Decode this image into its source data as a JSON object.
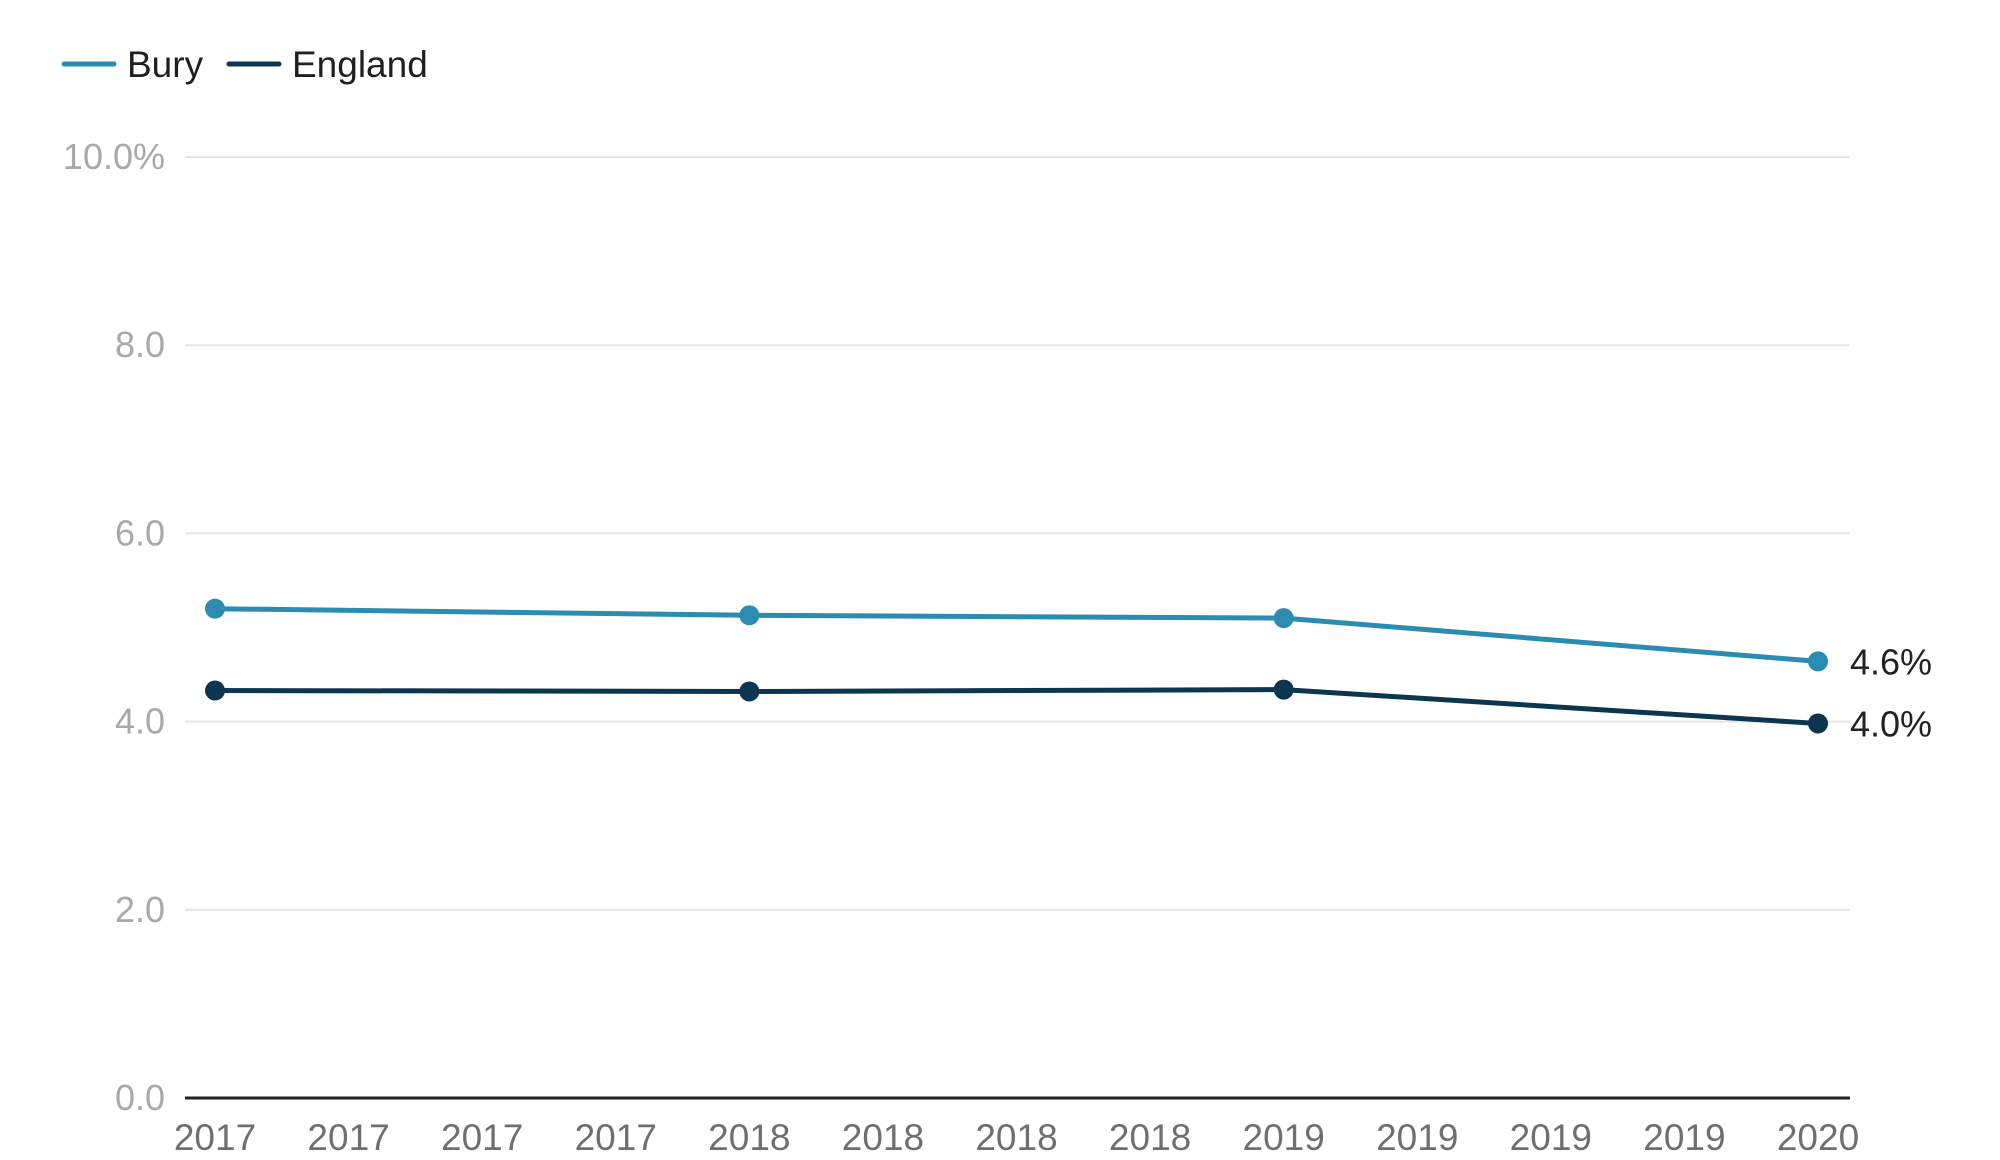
{
  "chart_data": {
    "type": "line",
    "title": "",
    "xlabel": "",
    "ylabel": "",
    "x_tick_labels": [
      "2017",
      "2017",
      "2017",
      "2017",
      "2018",
      "2018",
      "2018",
      "2018",
      "2019",
      "2019",
      "2019",
      "2019",
      "2020"
    ],
    "y_ticks": [
      0,
      2,
      4,
      6,
      8,
      10
    ],
    "y_tick_labels": [
      "0.0",
      "2.0",
      "4.0",
      "6.0",
      "8.0",
      "10.0%"
    ],
    "ylim": [
      0,
      10
    ],
    "grid": true,
    "legend_position": "top-left",
    "series": [
      {
        "name": "Bury",
        "color": "#2a8cb0",
        "points": [
          {
            "x": 0,
            "y": 5.2
          },
          {
            "x": 4,
            "y": 5.13
          },
          {
            "x": 8,
            "y": 5.1
          },
          {
            "x": 12,
            "y": 4.64
          }
        ],
        "end_label": "4.6%"
      },
      {
        "name": "England",
        "color": "#0c3550",
        "points": [
          {
            "x": 0,
            "y": 4.33
          },
          {
            "x": 4,
            "y": 4.32
          },
          {
            "x": 8,
            "y": 4.34
          },
          {
            "x": 12,
            "y": 3.98
          }
        ],
        "end_label": "4.0%"
      }
    ]
  }
}
